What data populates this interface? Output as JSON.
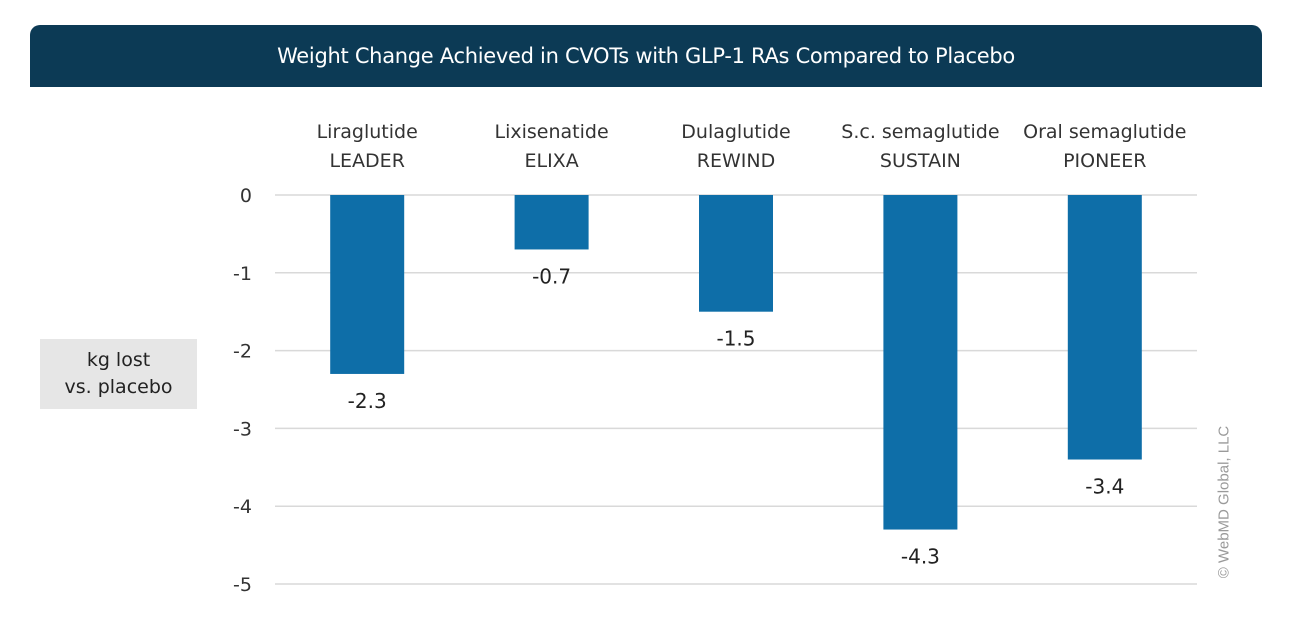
{
  "header": {
    "title": "Weight Change Achieved in CVOTs with GLP-1 RAs Compared to Placebo"
  },
  "ylabel_box": {
    "line1": "kg lost",
    "line2": "vs. placebo"
  },
  "copyright": "© WebMD Global, LLC",
  "colors": {
    "bar": "#0e6ea8",
    "header": "#0c3a55",
    "grid": "#d9d9d9",
    "label_box": "#e6e6e6"
  },
  "chart_data": {
    "type": "bar",
    "title": "Weight Change Achieved in CVOTs with GLP-1 RAs Compared to Placebo",
    "ylabel": "kg lost vs. placebo",
    "xlabel": "",
    "categories": [
      [
        "Liraglutide",
        "LEADER"
      ],
      [
        "Lixisenatide",
        "ELIXA"
      ],
      [
        "Dulaglutide",
        "REWIND"
      ],
      [
        "S.c. semaglutide",
        "SUSTAIN"
      ],
      [
        "Oral semaglutide",
        "PIONEER"
      ]
    ],
    "values": [
      -2.3,
      -0.7,
      -1.5,
      -4.3,
      -3.4
    ],
    "value_labels": [
      "-2.3",
      "-0.7",
      "-1.5",
      "-4.3",
      "-3.4"
    ],
    "ylim": [
      -5,
      0
    ],
    "yticks": [
      0,
      -1,
      -2,
      -3,
      -4,
      -5
    ],
    "ytick_labels": [
      "0",
      "-1",
      "-2",
      "-3",
      "-4",
      "-5"
    ],
    "grid": true,
    "legend": "none",
    "category_labels_position": "top"
  }
}
